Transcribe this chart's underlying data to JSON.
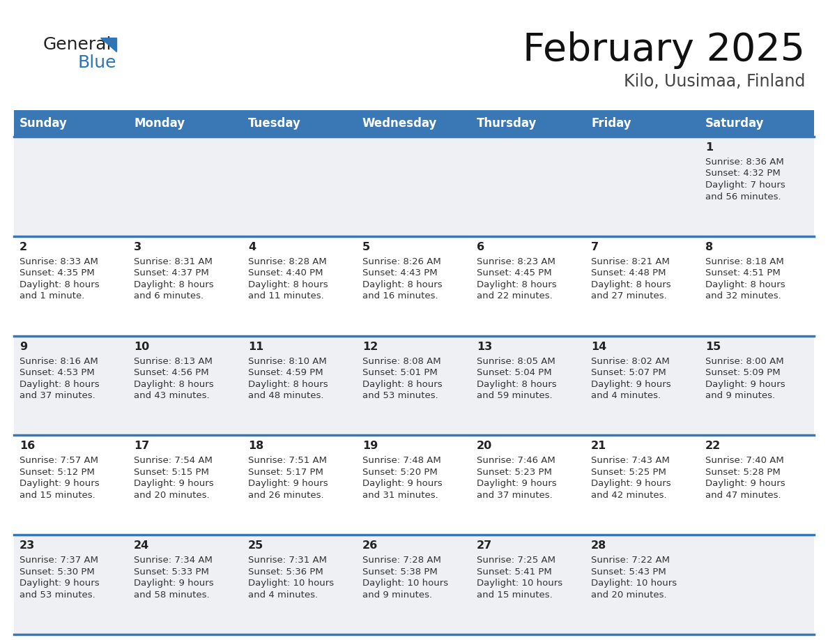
{
  "title": "February 2025",
  "subtitle": "Kilo, Uusimaa, Finland",
  "header_color": "#3a78b5",
  "header_text_color": "#ffffff",
  "days_of_week": [
    "Sunday",
    "Monday",
    "Tuesday",
    "Wednesday",
    "Thursday",
    "Friday",
    "Saturday"
  ],
  "background_color": "#ffffff",
  "row_colors": [
    "#eef0f3",
    "#ffffff"
  ],
  "cell_text_color": "#333333",
  "day_num_color": "#222222",
  "border_color": "#3a78b5",
  "logo_general_color": "#222222",
  "logo_blue_color": "#2e75b6",
  "logo_triangle_color": "#2e75b6",
  "calendar_data": [
    [
      null,
      null,
      null,
      null,
      null,
      null,
      {
        "day": "1",
        "sunrise": "8:36 AM",
        "sunset": "4:32 PM",
        "daylight": "7 hours\nand 56 minutes."
      }
    ],
    [
      {
        "day": "2",
        "sunrise": "8:33 AM",
        "sunset": "4:35 PM",
        "daylight": "8 hours\nand 1 minute."
      },
      {
        "day": "3",
        "sunrise": "8:31 AM",
        "sunset": "4:37 PM",
        "daylight": "8 hours\nand 6 minutes."
      },
      {
        "day": "4",
        "sunrise": "8:28 AM",
        "sunset": "4:40 PM",
        "daylight": "8 hours\nand 11 minutes."
      },
      {
        "day": "5",
        "sunrise": "8:26 AM",
        "sunset": "4:43 PM",
        "daylight": "8 hours\nand 16 minutes."
      },
      {
        "day": "6",
        "sunrise": "8:23 AM",
        "sunset": "4:45 PM",
        "daylight": "8 hours\nand 22 minutes."
      },
      {
        "day": "7",
        "sunrise": "8:21 AM",
        "sunset": "4:48 PM",
        "daylight": "8 hours\nand 27 minutes."
      },
      {
        "day": "8",
        "sunrise": "8:18 AM",
        "sunset": "4:51 PM",
        "daylight": "8 hours\nand 32 minutes."
      }
    ],
    [
      {
        "day": "9",
        "sunrise": "8:16 AM",
        "sunset": "4:53 PM",
        "daylight": "8 hours\nand 37 minutes."
      },
      {
        "day": "10",
        "sunrise": "8:13 AM",
        "sunset": "4:56 PM",
        "daylight": "8 hours\nand 43 minutes."
      },
      {
        "day": "11",
        "sunrise": "8:10 AM",
        "sunset": "4:59 PM",
        "daylight": "8 hours\nand 48 minutes."
      },
      {
        "day": "12",
        "sunrise": "8:08 AM",
        "sunset": "5:01 PM",
        "daylight": "8 hours\nand 53 minutes."
      },
      {
        "day": "13",
        "sunrise": "8:05 AM",
        "sunset": "5:04 PM",
        "daylight": "8 hours\nand 59 minutes."
      },
      {
        "day": "14",
        "sunrise": "8:02 AM",
        "sunset": "5:07 PM",
        "daylight": "9 hours\nand 4 minutes."
      },
      {
        "day": "15",
        "sunrise": "8:00 AM",
        "sunset": "5:09 PM",
        "daylight": "9 hours\nand 9 minutes."
      }
    ],
    [
      {
        "day": "16",
        "sunrise": "7:57 AM",
        "sunset": "5:12 PM",
        "daylight": "9 hours\nand 15 minutes."
      },
      {
        "day": "17",
        "sunrise": "7:54 AM",
        "sunset": "5:15 PM",
        "daylight": "9 hours\nand 20 minutes."
      },
      {
        "day": "18",
        "sunrise": "7:51 AM",
        "sunset": "5:17 PM",
        "daylight": "9 hours\nand 26 minutes."
      },
      {
        "day": "19",
        "sunrise": "7:48 AM",
        "sunset": "5:20 PM",
        "daylight": "9 hours\nand 31 minutes."
      },
      {
        "day": "20",
        "sunrise": "7:46 AM",
        "sunset": "5:23 PM",
        "daylight": "9 hours\nand 37 minutes."
      },
      {
        "day": "21",
        "sunrise": "7:43 AM",
        "sunset": "5:25 PM",
        "daylight": "9 hours\nand 42 minutes."
      },
      {
        "day": "22",
        "sunrise": "7:40 AM",
        "sunset": "5:28 PM",
        "daylight": "9 hours\nand 47 minutes."
      }
    ],
    [
      {
        "day": "23",
        "sunrise": "7:37 AM",
        "sunset": "5:30 PM",
        "daylight": "9 hours\nand 53 minutes."
      },
      {
        "day": "24",
        "sunrise": "7:34 AM",
        "sunset": "5:33 PM",
        "daylight": "9 hours\nand 58 minutes."
      },
      {
        "day": "25",
        "sunrise": "7:31 AM",
        "sunset": "5:36 PM",
        "daylight": "10 hours\nand 4 minutes."
      },
      {
        "day": "26",
        "sunrise": "7:28 AM",
        "sunset": "5:38 PM",
        "daylight": "10 hours\nand 9 minutes."
      },
      {
        "day": "27",
        "sunrise": "7:25 AM",
        "sunset": "5:41 PM",
        "daylight": "10 hours\nand 15 minutes."
      },
      {
        "day": "28",
        "sunrise": "7:22 AM",
        "sunset": "5:43 PM",
        "daylight": "10 hours\nand 20 minutes."
      },
      null
    ]
  ]
}
